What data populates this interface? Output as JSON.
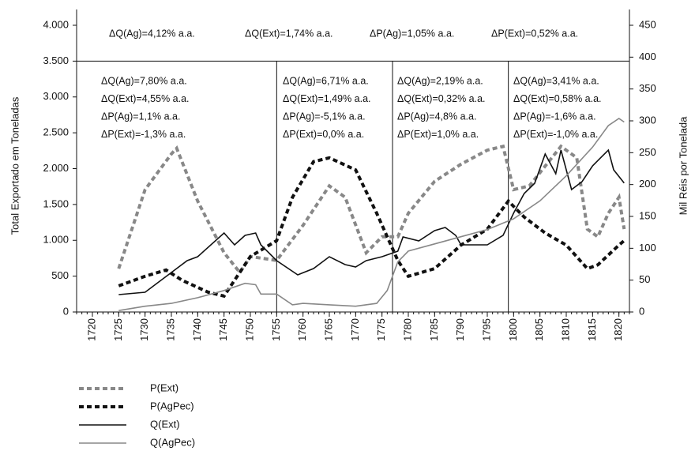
{
  "chart_data": {
    "type": "line",
    "ylabel": "Total Exportado em Toneladas",
    "y2label": "Mil Réis por Tonelada",
    "xlim": [
      1717,
      1822
    ],
    "xticks": [
      1720,
      1725,
      1730,
      1735,
      1740,
      1745,
      1750,
      1755,
      1760,
      1765,
      1770,
      1775,
      1780,
      1785,
      1790,
      1795,
      1800,
      1805,
      1810,
      1815,
      1820
    ],
    "ylim": [
      0,
      4000
    ],
    "yticks": [
      0,
      500,
      {
        "value": 1000,
        "label": "1.000"
      },
      {
        "value": 1500,
        "label": "1.500"
      },
      {
        "value": 2000,
        "label": "2.000"
      },
      {
        "value": 2500,
        "label": "2.500"
      },
      {
        "value": 3000,
        "label": "3.000"
      },
      {
        "value": 3500,
        "label": "3.500"
      },
      {
        "value": 4000,
        "label": "4.000"
      }
    ],
    "y2lim": [
      0,
      450
    ],
    "y2ticks": [
      0,
      50,
      100,
      150,
      200,
      250,
      300,
      350,
      400,
      450
    ],
    "hline": 3500,
    "dividers": [
      1755,
      1777,
      1799
    ],
    "annotations_top": [
      "ΔQ(Ag)=4,12% a.a.",
      "ΔQ(Ext)=1,74% a.a.",
      "ΔP(Ag)=1,05% a.a.",
      "ΔP(Ext)=0,52% a.a."
    ],
    "annotations_periods": [
      [
        "ΔQ(Ag)=7,80% a.a.",
        "ΔQ(Ext)=4,55% a.a.",
        "ΔP(Ag)=1,1% a.a.",
        "ΔP(Ext)=-1,3% a.a."
      ],
      [
        "ΔQ(Ag)=6,71% a.a.",
        "ΔQ(Ext)=1,49% a.a.",
        "ΔP(Ag)=-5,1% a.a.",
        "ΔP(Ext)=0,0% a.a."
      ],
      [
        "ΔQ(Ag)=2,19% a.a.",
        "ΔQ(Ext)=0,32% a.a.",
        "ΔP(Ag)=4,8% a.a.",
        "ΔP(Ext)=1,0% a.a."
      ],
      [
        "ΔQ(Ag)=3,41% a.a.",
        "ΔQ(Ext)=0,58% a.a.",
        "ΔP(Ag)=-1,6% a.a.",
        "ΔP(Ext)=-1,0% a.a."
      ]
    ],
    "series": [
      {
        "name": "P(Ext)",
        "color": "#888888",
        "style": "dashed",
        "axis": "y2",
        "x": [
          1725,
          1730,
          1735,
          1736,
          1740,
          1745,
          1748,
          1750,
          1755,
          1760,
          1765,
          1768,
          1772,
          1775,
          1778,
          1780,
          1785,
          1790,
          1795,
          1798,
          1800,
          1803,
          1806,
          1809,
          1812,
          1814,
          1816,
          1818,
          1820,
          1821
        ],
        "values": [
          68,
          192,
          248,
          257,
          174,
          93,
          62,
          87,
          81,
          136,
          198,
          180,
          93,
          118,
          118,
          155,
          205,
          232,
          254,
          260,
          192,
          198,
          229,
          260,
          242,
          130,
          118,
          155,
          180,
          130
        ]
      },
      {
        "name": "P(AgPec)",
        "color": "#111111",
        "style": "dashed",
        "axis": "y2",
        "x": [
          1725,
          1730,
          1734,
          1737,
          1742,
          1745,
          1750,
          1755,
          1758,
          1762,
          1765,
          1770,
          1774,
          1778,
          1780,
          1785,
          1790,
          1795,
          1799,
          1802,
          1806,
          1810,
          1814,
          1816,
          1820,
          1821
        ],
        "values": [
          41,
          56,
          66,
          50,
          31,
          25,
          87,
          112,
          180,
          236,
          242,
          223,
          155,
          81,
          56,
          68,
          105,
          130,
          174,
          149,
          124,
          105,
          68,
          74,
          105,
          112
        ]
      },
      {
        "name": "Q(Ext)",
        "color": "#111111",
        "style": "solid",
        "x": [
          1725,
          1730,
          1735,
          1738,
          1740,
          1745,
          1747,
          1749,
          1751,
          1752,
          1755,
          1759,
          1762,
          1765,
          1768,
          1770,
          1772,
          1775,
          1778,
          1779,
          1782,
          1785,
          1787,
          1789,
          1790,
          1795,
          1798,
          1800,
          1802,
          1804,
          1806,
          1808,
          1809,
          1811,
          1813,
          1815,
          1818,
          1819,
          1821
        ],
        "values": [
          242,
          275,
          551,
          716,
          771,
          1102,
          937,
          1069,
          1102,
          937,
          716,
          518,
          606,
          771,
          661,
          628,
          716,
          771,
          849,
          1047,
          992,
          1135,
          1179,
          1069,
          937,
          937,
          1069,
          1378,
          1653,
          1796,
          2204,
          1929,
          2259,
          1708,
          1818,
          2039,
          2259,
          1984,
          1800
        ]
      },
      {
        "name": "Q(AgPec)",
        "color": "#888888",
        "style": "solid",
        "x": [
          1725,
          1730,
          1735,
          1740,
          1745,
          1749,
          1751,
          1752,
          1755,
          1758,
          1760,
          1765,
          1770,
          1774,
          1776,
          1778,
          1780,
          1785,
          1790,
          1795,
          1800,
          1805,
          1810,
          1815,
          1818,
          1820,
          1821
        ],
        "values": [
          20,
          80,
          120,
          200,
          300,
          400,
          380,
          250,
          250,
          100,
          120,
          100,
          80,
          120,
          300,
          700,
          850,
          950,
          1050,
          1150,
          1300,
          1550,
          1900,
          2300,
          2600,
          2700,
          2650
        ]
      }
    ]
  }
}
